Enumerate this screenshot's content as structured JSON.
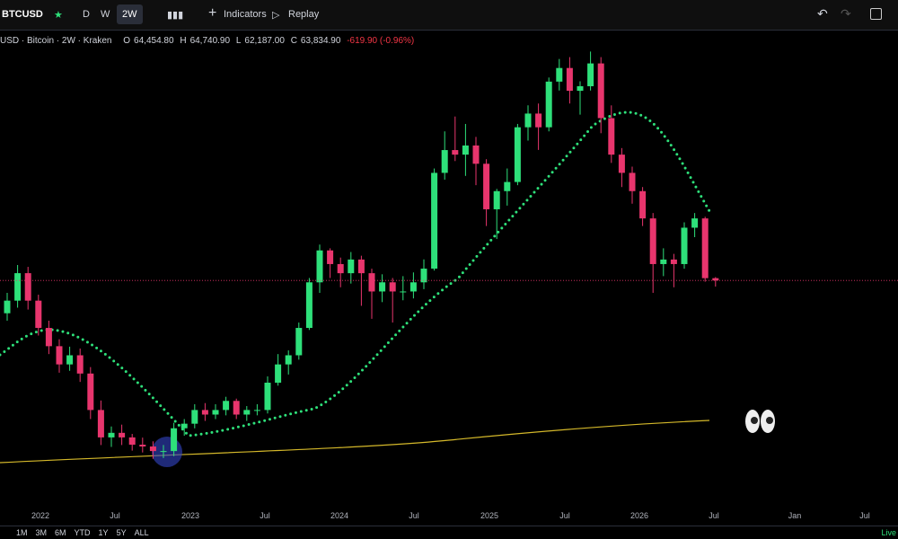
{
  "toolbar": {
    "symbol": "BTCUSD",
    "intervals": [
      "D",
      "W",
      "2W"
    ],
    "indicators": "Indicators",
    "replay": "Replay"
  },
  "legend": {
    "name": "USD · Bitcoin · 2W · Kraken",
    "o_label": "O",
    "o": "64,454.80",
    "h_label": "H",
    "h": "64,740.90",
    "l_label": "L",
    "l": "62,187.00",
    "c_label": "C",
    "c": "63,834.90",
    "change": "-619.90 (-0.96%)"
  },
  "chart_data": {
    "type": "candlestick",
    "up_color": "#2ee07a",
    "down_color": "#e8356d",
    "ylim": [
      1450,
      131400
    ],
    "x_labels": [
      "2022",
      "Jul",
      "2023",
      "Jul",
      "2024",
      "Jul",
      "2025",
      "Jul",
      "2026",
      "Jul",
      "Jan",
      "Jul"
    ],
    "ohlc": [
      [
        55000,
        60500,
        53000,
        58400
      ],
      [
        58400,
        68000,
        56500,
        65800
      ],
      [
        65800,
        67500,
        56000,
        58400
      ],
      [
        58400,
        60000,
        49000,
        51050
      ],
      [
        51050,
        53000,
        44000,
        46130
      ],
      [
        46130,
        48000,
        39000,
        41220
      ],
      [
        41220,
        46000,
        39500,
        43680
      ],
      [
        43680,
        45500,
        36500,
        38760
      ],
      [
        38760,
        40500,
        26500,
        28940
      ],
      [
        28940,
        31500,
        19500,
        21560
      ],
      [
        21560,
        24500,
        19000,
        22790
      ],
      [
        22790,
        25000,
        19500,
        21560
      ],
      [
        21560,
        22500,
        18000,
        19600
      ],
      [
        19600,
        21500,
        17500,
        19110
      ],
      [
        19110,
        20500,
        15800,
        17880
      ],
      [
        17880,
        19500,
        16000,
        17880
      ],
      [
        17880,
        25500,
        16500,
        24020
      ],
      [
        24020,
        26500,
        22000,
        25250
      ],
      [
        25250,
        30500,
        24000,
        28940
      ],
      [
        28940,
        30800,
        26000,
        27710
      ],
      [
        27710,
        30500,
        26500,
        28940
      ],
      [
        28940,
        32500,
        27500,
        31390
      ],
      [
        31390,
        32000,
        26500,
        27710
      ],
      [
        27710,
        30000,
        26000,
        28940
      ],
      [
        28940,
        30500,
        27500,
        28940
      ],
      [
        28940,
        38000,
        28000,
        36300
      ],
      [
        36300,
        44000,
        35500,
        41220
      ],
      [
        41220,
        45000,
        38500,
        43680
      ],
      [
        43680,
        52500,
        42500,
        51050
      ],
      [
        51050,
        64500,
        50500,
        63330
      ],
      [
        63330,
        73500,
        60500,
        71930
      ],
      [
        71930,
        72500,
        64500,
        68250
      ],
      [
        68250,
        70000,
        62000,
        65790
      ],
      [
        65790,
        71500,
        63000,
        69470
      ],
      [
        69470,
        70500,
        57000,
        65790
      ],
      [
        65790,
        67000,
        53500,
        60870
      ],
      [
        60870,
        65500,
        58000,
        63330
      ],
      [
        63330,
        64500,
        52500,
        60870
      ],
      [
        60870,
        65000,
        58500,
        60870
      ],
      [
        60870,
        66000,
        59000,
        63330
      ],
      [
        63330,
        69500,
        61500,
        67020
      ],
      [
        67020,
        94000,
        66500,
        92820
      ],
      [
        92820,
        104000,
        91000,
        98960
      ],
      [
        98960,
        108000,
        96000,
        97730
      ],
      [
        97730,
        106000,
        92000,
        100190
      ],
      [
        100190,
        102500,
        89500,
        95270
      ],
      [
        95270,
        96500,
        78500,
        83010
      ],
      [
        83010,
        88500,
        75000,
        87900
      ],
      [
        87900,
        94000,
        84000,
        90360
      ],
      [
        90360,
        106000,
        89500,
        105100
      ],
      [
        105100,
        111000,
        101500,
        108790
      ],
      [
        108790,
        111500,
        99000,
        105100
      ],
      [
        105100,
        118500,
        104000,
        117400
      ],
      [
        117400,
        123500,
        115000,
        121070
      ],
      [
        121070,
        124000,
        111500,
        114930
      ],
      [
        114930,
        117500,
        108500,
        116160
      ],
      [
        116160,
        125500,
        115000,
        122300
      ],
      [
        122300,
        124000,
        103500,
        107560
      ],
      [
        107560,
        111000,
        95500,
        97730
      ],
      [
        97730,
        99500,
        89000,
        92820
      ],
      [
        92820,
        94500,
        84500,
        87900
      ],
      [
        87900,
        89000,
        78500,
        80550
      ],
      [
        80550,
        82000,
        60500,
        68250
      ],
      [
        68250,
        72500,
        65000,
        69470
      ],
      [
        69470,
        71000,
        62000,
        68250
      ],
      [
        68250,
        79500,
        67000,
        78050
      ],
      [
        78050,
        82000,
        75500,
        80550
      ],
      [
        80550,
        81000,
        63500,
        64454.8
      ],
      [
        64454.8,
        64740.9,
        62187,
        63834.9
      ]
    ]
  },
  "ranges": [
    "1M",
    "3M",
    "6M",
    "YTD",
    "1Y",
    "5Y",
    "ALL"
  ],
  "status": "Live"
}
